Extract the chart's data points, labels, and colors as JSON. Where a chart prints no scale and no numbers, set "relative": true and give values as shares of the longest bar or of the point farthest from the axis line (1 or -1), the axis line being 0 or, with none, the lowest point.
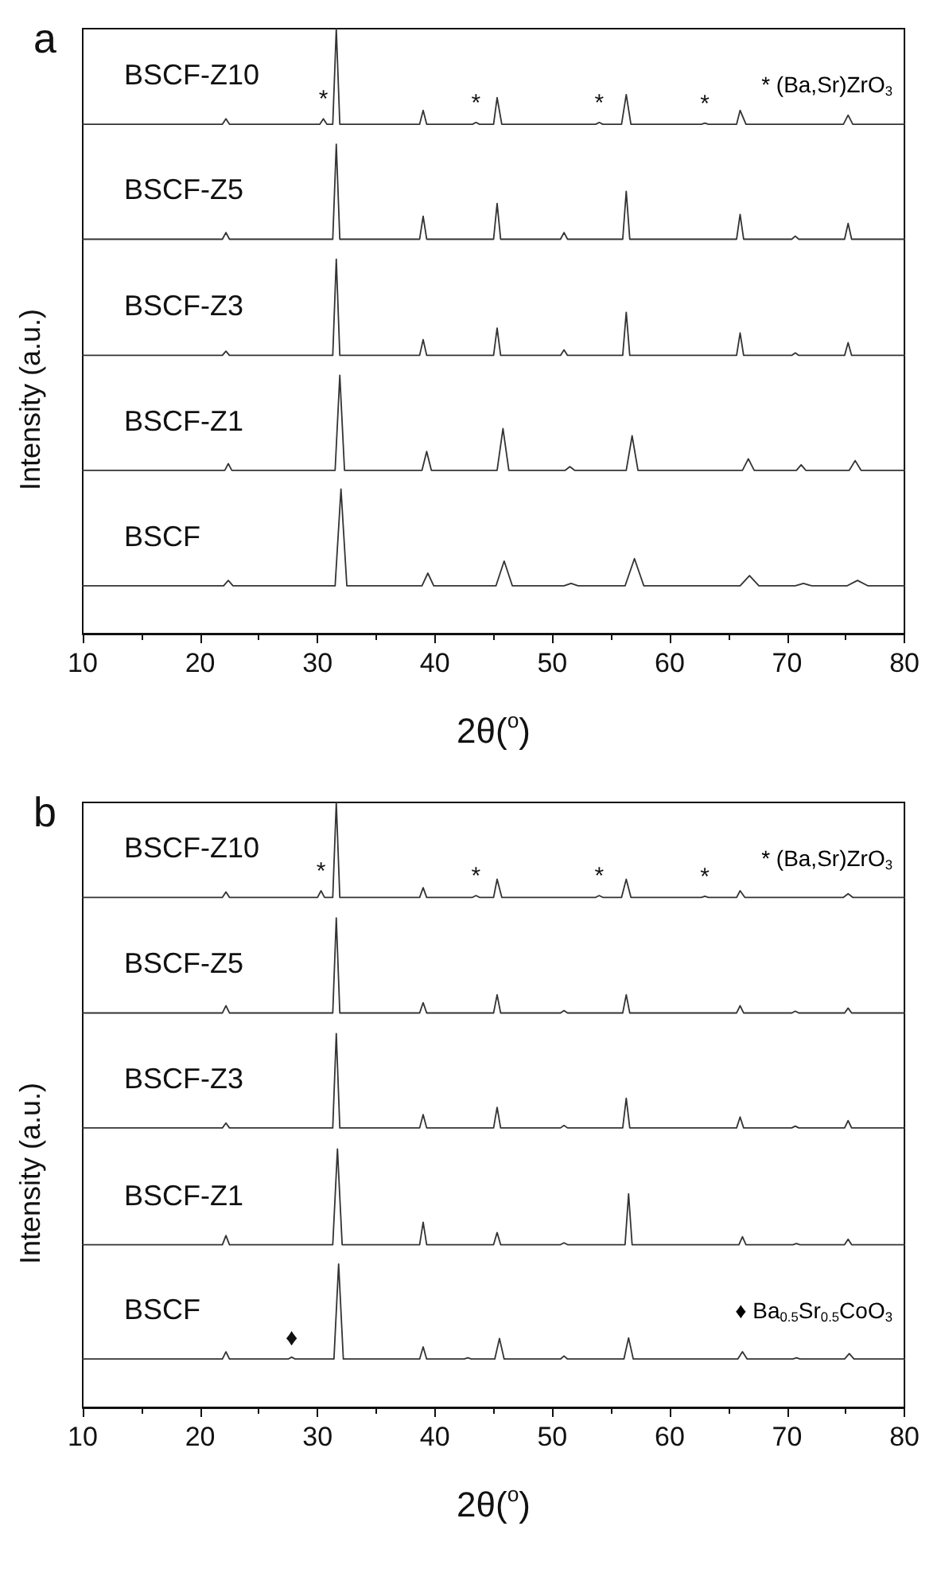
{
  "chart_data": [
    {
      "type": "line",
      "title": "a",
      "xlabel": "2θ($^{o}$)",
      "ylabel": "Intensity (a.u.)",
      "relative": true,
      "marker": "none",
      "line_style": "solid",
      "xlim": [
        10,
        80
      ],
      "xticks": [
        10,
        20,
        30,
        40,
        50,
        60,
        70,
        80
      ],
      "annotations": [
        "* (Ba,Sr)ZrO$_{3}$",
        {
          "text": "*",
          "x": 30.5,
          "y": 0.851
        },
        {
          "text": "*",
          "x": 43.5,
          "y": 0.845
        },
        {
          "text": "*",
          "x": 54,
          "y": 0.845
        },
        {
          "text": "*",
          "x": 63,
          "y": 0.844
        }
      ],
      "series": [
        {
          "name": "BSCF-Z10",
          "color": "#333333",
          "x": [
            10,
            21.9,
            22.2,
            22.5,
            30.2,
            30.5,
            30.8,
            31.3,
            31.6,
            31.9,
            38.7,
            39.0,
            39.3,
            43.2,
            43.5,
            43.8,
            45.0,
            45.3,
            45.7,
            53.7,
            54,
            54.3,
            55.9,
            56.3,
            56.7,
            62.7,
            63,
            63.3,
            65.7,
            66.0,
            66.5,
            74.8,
            75.2,
            75.6,
            80
          ],
          "values": [
            0.842,
            0.842,
            0.851,
            0.842,
            0.842,
            0.851,
            0.842,
            0.842,
            1,
            0.842,
            0.842,
            0.865,
            0.842,
            0.842,
            0.845,
            0.842,
            0.842,
            0.886,
            0.842,
            0.842,
            0.845,
            0.842,
            0.842,
            0.891,
            0.842,
            0.842,
            0.844,
            0.842,
            0.842,
            0.865,
            0.842,
            0.842,
            0.857,
            0.842,
            0.842
          ]
        },
        {
          "name": "BSCF-Z5",
          "color": "#333333",
          "x": [
            10,
            21.9,
            22.2,
            22.5,
            31.3,
            31.6,
            31.9,
            38.7,
            39.0,
            39.3,
            45.0,
            45.3,
            45.6,
            50.7,
            51.0,
            51.3,
            56.0,
            56.3,
            56.6,
            65.7,
            66.0,
            66.3,
            70.4,
            70.7,
            71.0,
            74.9,
            75.2,
            75.5,
            80
          ],
          "values": [
            0.652,
            0.652,
            0.663,
            0.652,
            0.652,
            0.809,
            0.652,
            0.652,
            0.69,
            0.652,
            0.652,
            0.711,
            0.652,
            0.652,
            0.663,
            0.652,
            0.652,
            0.731,
            0.652,
            0.652,
            0.693,
            0.652,
            0.652,
            0.657,
            0.652,
            0.652,
            0.678,
            0.652,
            0.652
          ]
        },
        {
          "name": "BSCF-Z3",
          "color": "#333333",
          "x": [
            10,
            21.9,
            22.2,
            22.5,
            31.3,
            31.6,
            31.9,
            38.7,
            39.0,
            39.3,
            45.0,
            45.3,
            45.6,
            50.7,
            51.0,
            51.3,
            56.0,
            56.3,
            56.6,
            65.7,
            66.0,
            66.3,
            70.4,
            70.7,
            71.0,
            74.9,
            75.2,
            75.5,
            80
          ],
          "values": [
            0.46,
            0.46,
            0.467,
            0.46,
            0.46,
            0.619,
            0.46,
            0.46,
            0.486,
            0.46,
            0.46,
            0.505,
            0.46,
            0.46,
            0.469,
            0.46,
            0.46,
            0.531,
            0.46,
            0.46,
            0.497,
            0.46,
            0.46,
            0.464,
            0.46,
            0.46,
            0.481,
            0.46,
            0.46
          ]
        },
        {
          "name": "BSCF-Z1",
          "color": "#333333",
          "x": [
            10,
            22.1,
            22.4,
            22.7,
            31.5,
            31.9,
            32.3,
            38.9,
            39.3,
            39.7,
            45.3,
            45.8,
            46.3,
            51.1,
            51.5,
            51.9,
            56.3,
            56.8,
            57.3,
            66.2,
            66.7,
            67.2,
            70.8,
            71.2,
            71.6,
            75.3,
            75.8,
            76.3,
            80
          ],
          "values": [
            0.27,
            0.27,
            0.281,
            0.27,
            0.27,
            0.427,
            0.27,
            0.27,
            0.301,
            0.27,
            0.27,
            0.339,
            0.27,
            0.27,
            0.276,
            0.27,
            0.27,
            0.327,
            0.27,
            0.27,
            0.289,
            0.27,
            0.27,
            0.279,
            0.27,
            0.27,
            0.286,
            0.27,
            0.27
          ]
        },
        {
          "name": "BSCF",
          "color": "#333333",
          "x": [
            10,
            22.0,
            22.4,
            22.8,
            31.5,
            32.0,
            32.5,
            38.9,
            39.4,
            39.9,
            45.2,
            45.9,
            46.6,
            51.0,
            51.6,
            52.2,
            56.2,
            57.0,
            57.8,
            66.0,
            66.8,
            67.6,
            70.7,
            71.4,
            72.1,
            75.1,
            76.0,
            76.9,
            80
          ],
          "values": [
            0.079,
            0.079,
            0.088,
            0.079,
            0.079,
            0.239,
            0.079,
            0.079,
            0.1,
            0.079,
            0.079,
            0.12,
            0.079,
            0.079,
            0.083,
            0.079,
            0.079,
            0.124,
            0.079,
            0.079,
            0.096,
            0.079,
            0.079,
            0.083,
            0.079,
            0.079,
            0.088,
            0.079,
            0.079
          ]
        }
      ]
    },
    {
      "type": "line",
      "title": "b",
      "xlabel": "2θ($^{o}$)",
      "ylabel": "Intensity (a.u.)",
      "relative": true,
      "marker": "none",
      "line_style": "solid",
      "xlim": [
        10,
        80
      ],
      "xticks": [
        10,
        20,
        30,
        40,
        50,
        60,
        70,
        80
      ],
      "annotations": [
        "* (Ba,Sr)ZrO$_{3}$",
        "♦ Ba$_{0.5}$Sr$_{0.5}$CoO$_{3}$",
        {
          "text": "*",
          "x": 30.3,
          "y": 0.854
        },
        {
          "text": "*",
          "x": 43.5,
          "y": 0.846
        },
        {
          "text": "*",
          "x": 54,
          "y": 0.846
        },
        {
          "text": "*",
          "x": 63,
          "y": 0.845
        },
        {
          "text": "♦",
          "x": 27.8,
          "y": 0.083
        }
      ],
      "series": [
        {
          "name": "BSCF-Z10",
          "color": "#333333",
          "x": [
            10,
            21.9,
            22.2,
            22.5,
            30.0,
            30.3,
            30.6,
            31.3,
            31.6,
            31.9,
            38.7,
            39.0,
            39.3,
            43.2,
            43.5,
            43.8,
            45.0,
            45.3,
            45.7,
            53.7,
            54,
            54.3,
            55.9,
            56.3,
            56.7,
            62.7,
            63,
            63.3,
            65.7,
            66.0,
            66.4,
            74.8,
            75.2,
            75.6,
            80
          ],
          "values": [
            0.843,
            0.843,
            0.852,
            0.843,
            0.843,
            0.854,
            0.843,
            0.843,
            1,
            0.843,
            0.843,
            0.859,
            0.843,
            0.843,
            0.846,
            0.843,
            0.843,
            0.873,
            0.843,
            0.843,
            0.846,
            0.843,
            0.843,
            0.873,
            0.843,
            0.843,
            0.845,
            0.843,
            0.843,
            0.854,
            0.843,
            0.843,
            0.849,
            0.843,
            0.843
          ]
        },
        {
          "name": "BSCF-Z5",
          "color": "#333333",
          "x": [
            10,
            21.9,
            22.2,
            22.5,
            31.3,
            31.6,
            31.9,
            38.7,
            39.0,
            39.3,
            45.0,
            45.3,
            45.6,
            50.7,
            51.0,
            51.3,
            56.0,
            56.3,
            56.6,
            65.7,
            66.0,
            66.3,
            70.4,
            70.7,
            71.0,
            74.9,
            75.2,
            75.5,
            80
          ],
          "values": [
            0.652,
            0.652,
            0.664,
            0.652,
            0.652,
            0.809,
            0.652,
            0.652,
            0.669,
            0.652,
            0.652,
            0.682,
            0.652,
            0.652,
            0.656,
            0.652,
            0.652,
            0.682,
            0.652,
            0.652,
            0.664,
            0.652,
            0.652,
            0.655,
            0.652,
            0.652,
            0.66,
            0.652,
            0.652
          ]
        },
        {
          "name": "BSCF-Z3",
          "color": "#333333",
          "x": [
            10,
            21.9,
            22.2,
            22.5,
            31.3,
            31.6,
            31.9,
            38.7,
            39.0,
            39.3,
            45.0,
            45.3,
            45.6,
            50.7,
            51.0,
            51.3,
            56.0,
            56.3,
            56.6,
            65.7,
            66.0,
            66.3,
            70.4,
            70.7,
            71.0,
            74.9,
            75.2,
            75.5,
            80
          ],
          "values": [
            0.462,
            0.462,
            0.47,
            0.462,
            0.462,
            0.618,
            0.462,
            0.462,
            0.484,
            0.462,
            0.462,
            0.496,
            0.462,
            0.462,
            0.466,
            0.462,
            0.462,
            0.511,
            0.462,
            0.462,
            0.48,
            0.462,
            0.462,
            0.465,
            0.462,
            0.462,
            0.474,
            0.462,
            0.462
          ]
        },
        {
          "name": "BSCF-Z1",
          "color": "#333333",
          "x": [
            10,
            21.9,
            22.2,
            22.5,
            31.3,
            31.7,
            32.1,
            38.7,
            39.0,
            39.3,
            45.0,
            45.3,
            45.6,
            50.7,
            51.0,
            51.3,
            56.2,
            56.5,
            56.8,
            65.9,
            66.2,
            66.5,
            70.5,
            70.8,
            71.1,
            74.9,
            75.2,
            75.5,
            80
          ],
          "values": [
            0.269,
            0.269,
            0.284,
            0.269,
            0.269,
            0.427,
            0.269,
            0.269,
            0.306,
            0.269,
            0.269,
            0.289,
            0.269,
            0.269,
            0.272,
            0.269,
            0.269,
            0.353,
            0.269,
            0.269,
            0.282,
            0.269,
            0.269,
            0.271,
            0.269,
            0.269,
            0.278,
            0.269,
            0.269
          ]
        },
        {
          "name": "BSCF",
          "color": "#333333",
          "x": [
            10,
            21.9,
            22.2,
            22.5,
            27.5,
            27.8,
            28.1,
            31.4,
            31.8,
            32.2,
            38.7,
            39.0,
            39.3,
            42.5,
            42.8,
            43.1,
            45.1,
            45.5,
            45.9,
            50.7,
            51.0,
            51.3,
            56.1,
            56.5,
            56.9,
            65.8,
            66.2,
            66.6,
            70.5,
            70.8,
            71.1,
            74.9,
            75.3,
            75.7,
            80
          ],
          "values": [
            0.08,
            0.08,
            0.092,
            0.08,
            0.08,
            0.083,
            0.08,
            0.08,
            0.237,
            0.08,
            0.08,
            0.1,
            0.08,
            0.08,
            0.082,
            0.08,
            0.08,
            0.114,
            0.08,
            0.08,
            0.085,
            0.08,
            0.08,
            0.115,
            0.08,
            0.08,
            0.092,
            0.08,
            0.08,
            0.082,
            0.08,
            0.08,
            0.089,
            0.08,
            0.08
          ]
        }
      ]
    }
  ]
}
